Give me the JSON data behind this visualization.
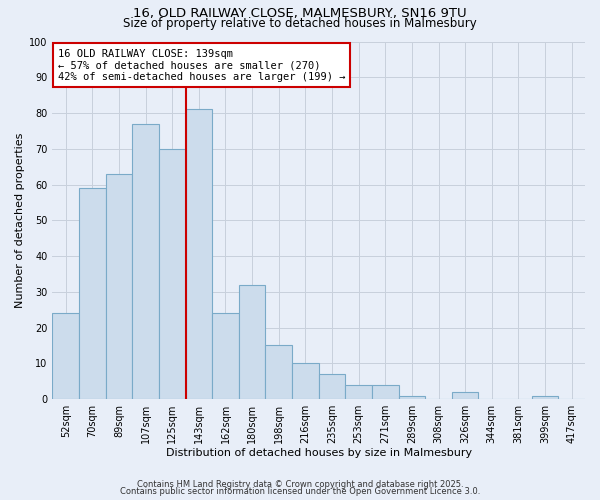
{
  "title1": "16, OLD RAILWAY CLOSE, MALMESBURY, SN16 9TU",
  "title2": "Size of property relative to detached houses in Malmesbury",
  "xlabel": "Distribution of detached houses by size in Malmesbury",
  "ylabel": "Number of detached properties",
  "categories": [
    "52sqm",
    "70sqm",
    "89sqm",
    "107sqm",
    "125sqm",
    "143sqm",
    "162sqm",
    "180sqm",
    "198sqm",
    "216sqm",
    "235sqm",
    "253sqm",
    "271sqm",
    "289sqm",
    "308sqm",
    "326sqm",
    "344sqm",
    "381sqm",
    "399sqm",
    "417sqm"
  ],
  "values": [
    24,
    59,
    63,
    77,
    70,
    81,
    24,
    32,
    15,
    10,
    7,
    4,
    4,
    1,
    0,
    2,
    0,
    0,
    1,
    0
  ],
  "bar_color": "#ccdcec",
  "bar_edge_color": "#7aaac8",
  "vline_color": "#cc0000",
  "vline_position": 5,
  "annotation_text": "16 OLD RAILWAY CLOSE: 139sqm\n← 57% of detached houses are smaller (270)\n42% of semi-detached houses are larger (199) →",
  "annotation_box_color": "#ffffff",
  "annotation_box_edge": "#cc0000",
  "ylim": [
    0,
    100
  ],
  "yticks": [
    0,
    10,
    20,
    30,
    40,
    50,
    60,
    70,
    80,
    90,
    100
  ],
  "grid_color": "#c8d0dc",
  "bg_color": "#e8eef8",
  "footer1": "Contains HM Land Registry data © Crown copyright and database right 2025.",
  "footer2": "Contains public sector information licensed under the Open Government Licence 3.0.",
  "title_fontsize": 9.5,
  "subtitle_fontsize": 8.5,
  "annot_fontsize": 7.5,
  "tick_fontsize": 7,
  "axis_label_fontsize": 8,
  "footer_fontsize": 6
}
